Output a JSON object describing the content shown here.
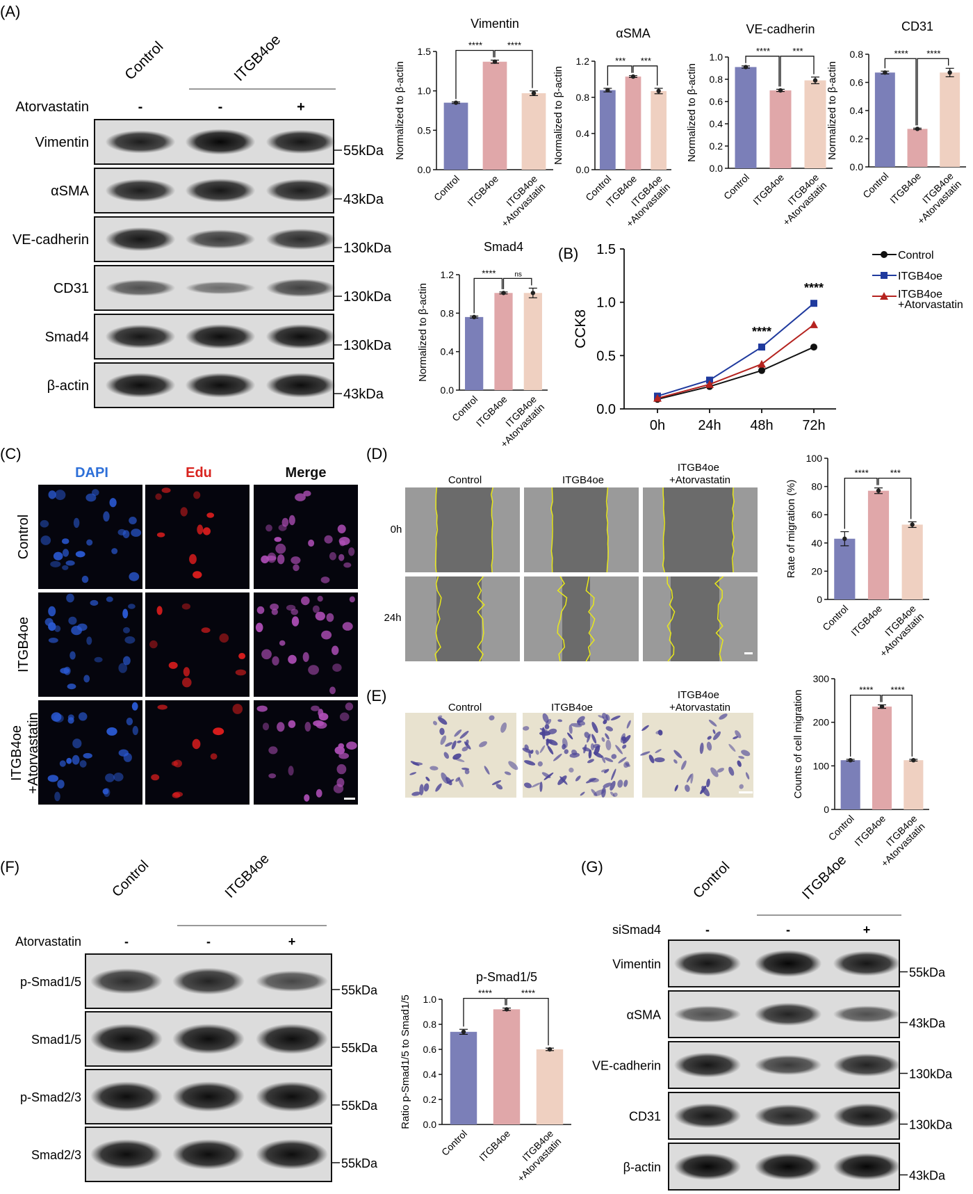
{
  "panels": {
    "A": {
      "label": "(A)",
      "lanes": [
        "Control",
        "ITGB4oe"
      ],
      "treatment": {
        "name": "Atorvastatin",
        "values": [
          "-",
          "-",
          "+"
        ]
      },
      "blots": [
        {
          "name": "Vimentin",
          "kda": "55kDa",
          "intensity": [
            0.8,
            0.95,
            0.85
          ]
        },
        {
          "name": "αSMA",
          "kda": "43kDa",
          "intensity": [
            0.8,
            0.85,
            0.8
          ]
        },
        {
          "name": "VE-cadherin",
          "kda": "130kDa",
          "intensity": [
            0.85,
            0.6,
            0.7
          ]
        },
        {
          "name": "CD31",
          "kda": "130kDa",
          "intensity": [
            0.45,
            0.25,
            0.55
          ]
        },
        {
          "name": "Smad4",
          "kda": "130kDa",
          "intensity": [
            0.85,
            0.9,
            0.9
          ]
        },
        {
          "name": "β-actin",
          "kda": "43kDa",
          "intensity": [
            0.9,
            0.9,
            0.9
          ]
        }
      ]
    },
    "B": {
      "label": "(B)"
    },
    "C": {
      "label": "(C)",
      "columns": [
        "DAPI",
        "Edu",
        "Merge"
      ],
      "rows": [
        "Control",
        "ITGB4oe",
        "ITGB4oe\n+Atorvastatin"
      ]
    },
    "D": {
      "label": "(D)",
      "columns": [
        "Control",
        "ITGB4oe",
        "ITGB4oe\n+Atorvastatin"
      ],
      "rows": [
        "0h",
        "24h"
      ]
    },
    "E": {
      "label": "(E)",
      "columns": [
        "Control",
        "ITGB4oe",
        "ITGB4oe\n+Atorvastatin"
      ]
    },
    "F": {
      "label": "(F)",
      "lanes": [
        "Control",
        "ITGB4oe"
      ],
      "treatment": {
        "name": "Atorvastatin",
        "values": [
          "-",
          "-",
          "+"
        ]
      },
      "blots": [
        {
          "name": "p-Smad1/5",
          "kda": "55kDa",
          "intensity": [
            0.7,
            0.75,
            0.5
          ]
        },
        {
          "name": "Smad1/5",
          "kda": "55kDa",
          "intensity": [
            0.9,
            0.9,
            0.9
          ]
        },
        {
          "name": "p-Smad2/3",
          "kda": "55kDa",
          "intensity": [
            0.9,
            0.9,
            0.9
          ]
        },
        {
          "name": "Smad2/3",
          "kda": "55kDa",
          "intensity": [
            0.9,
            0.9,
            0.9
          ]
        }
      ]
    },
    "G": {
      "label": "(G)",
      "lanes": [
        "Control",
        "ITGB4oe"
      ],
      "treatment": {
        "name": "siSmad4",
        "values": [
          "-",
          "-",
          "+"
        ]
      },
      "blots": [
        {
          "name": "Vimentin",
          "kda": "55kDa",
          "intensity": [
            0.85,
            0.95,
            0.85
          ]
        },
        {
          "name": "αSMA",
          "kda": "43kDa",
          "intensity": [
            0.45,
            0.75,
            0.45
          ]
        },
        {
          "name": "VE-cadherin",
          "kda": "130kDa",
          "intensity": [
            0.85,
            0.6,
            0.75
          ]
        },
        {
          "name": "CD31",
          "kda": "130kDa",
          "intensity": [
            0.85,
            0.75,
            0.85
          ]
        },
        {
          "name": "β-actin",
          "kda": "43kDa",
          "intensity": [
            0.95,
            0.95,
            0.95
          ]
        }
      ]
    }
  },
  "colors": {
    "control": "#7b7fb8",
    "itgb4oe": "#e0a7a9",
    "atorva": "#efd0c1"
  },
  "chart_data": [
    {
      "id": "vimentin",
      "type": "bar",
      "title": "Vimentin",
      "ylabel": "Normalized to β-actin",
      "categories": [
        "Control",
        "ITGB4oe",
        "ITGB4oe\n+Atorvastatin"
      ],
      "values": [
        0.85,
        1.37,
        0.97
      ],
      "errors": [
        0.01,
        0.02,
        0.03
      ],
      "ylim": [
        0,
        1.5
      ],
      "yticks": [
        "0.0",
        "0.5",
        "1.0",
        "1.5"
      ],
      "significance": [
        {
          "a": 0,
          "b": 1,
          "label": "****"
        },
        {
          "a": 1,
          "b": 2,
          "label": "****"
        }
      ]
    },
    {
      "id": "asma",
      "type": "bar",
      "title": "αSMA",
      "ylabel": "Normalized to β-actin",
      "categories": [
        "Control",
        "ITGB4oe",
        "ITGB4oe\n+Atorvastatin"
      ],
      "values": [
        0.88,
        1.03,
        0.87
      ],
      "errors": [
        0.02,
        0.01,
        0.03
      ],
      "ylim": [
        0,
        1.2
      ],
      "yticks": [
        "0.0",
        "0.4",
        "0.8",
        "1.2"
      ],
      "significance": [
        {
          "a": 0,
          "b": 1,
          "label": "***"
        },
        {
          "a": 1,
          "b": 2,
          "label": "***"
        }
      ]
    },
    {
      "id": "vecadherin",
      "type": "bar",
      "title": "VE-cadherin",
      "ylabel": "Normalized to β-actin",
      "categories": [
        "Control",
        "ITGB4oe",
        "ITGB4oe\n+Atorvastatin"
      ],
      "values": [
        0.91,
        0.7,
        0.79
      ],
      "errors": [
        0.01,
        0.01,
        0.03
      ],
      "ylim": [
        0,
        1.0
      ],
      "yticks": [
        "0.0",
        "0.2",
        "0.4",
        "0.6",
        "0.8",
        "1.0"
      ],
      "significance": [
        {
          "a": 0,
          "b": 1,
          "label": "****"
        },
        {
          "a": 1,
          "b": 2,
          "label": "***"
        }
      ]
    },
    {
      "id": "cd31",
      "type": "bar",
      "title": "CD31",
      "ylabel": "Normalized to β-actin",
      "categories": [
        "Control",
        "ITGB4oe",
        "ITGB4oe\n+Atorvastatin"
      ],
      "values": [
        0.67,
        0.27,
        0.67
      ],
      "errors": [
        0.01,
        0.005,
        0.03
      ],
      "ylim": [
        0,
        0.8
      ],
      "yticks": [
        "0.0",
        "0.2",
        "0.4",
        "0.6",
        "0.8"
      ],
      "significance": [
        {
          "a": 0,
          "b": 1,
          "label": "****"
        },
        {
          "a": 1,
          "b": 2,
          "label": "****"
        }
      ]
    },
    {
      "id": "smad4",
      "type": "bar",
      "title": "Smad4",
      "ylabel": "Normalized to β-actin",
      "categories": [
        "Control",
        "ITGB4oe",
        "ITGB4oe\n+Atorvastatin"
      ],
      "values": [
        0.76,
        1.01,
        1.01
      ],
      "errors": [
        0.01,
        0.01,
        0.05
      ],
      "ylim": [
        0,
        1.2
      ],
      "yticks": [
        "0.0",
        "0.4",
        "0.8",
        "1.2"
      ],
      "significance": [
        {
          "a": 0,
          "b": 1,
          "label": "****"
        },
        {
          "a": 1,
          "b": 2,
          "label": "ns"
        }
      ]
    },
    {
      "id": "cck8",
      "type": "line",
      "ylabel": "CCK8",
      "x": [
        "0h",
        "24h",
        "48h",
        "72h"
      ],
      "ylim": [
        0,
        1.5
      ],
      "yticks": [
        "0.0",
        "0.5",
        "1.0",
        "1.5"
      ],
      "series": [
        {
          "name": "Control",
          "values": [
            0.09,
            0.21,
            0.36,
            0.58
          ],
          "color": "#111111",
          "marker": "circle"
        },
        {
          "name": "ITGB4oe",
          "values": [
            0.12,
            0.27,
            0.58,
            0.99
          ],
          "color": "#1f3a9e",
          "marker": "square"
        },
        {
          "name": "ITGB4oe\n+Atorvastatin",
          "values": [
            0.1,
            0.23,
            0.42,
            0.79
          ],
          "color": "#b5231f",
          "marker": "triangle"
        }
      ],
      "annotations": [
        {
          "x": "48h",
          "label": "****"
        },
        {
          "x": "72h",
          "label": "****"
        }
      ]
    },
    {
      "id": "migration",
      "type": "bar",
      "ylabel": "Rate of migration (%)",
      "categories": [
        "Control",
        "ITGB4oe",
        "ITGB4oe\n+Atorvastatin"
      ],
      "values": [
        43,
        77,
        53
      ],
      "errors": [
        5,
        2,
        2
      ],
      "ylim": [
        0,
        100
      ],
      "yticks": [
        "0",
        "20",
        "40",
        "60",
        "80",
        "100"
      ],
      "significance": [
        {
          "a": 0,
          "b": 1,
          "label": "****"
        },
        {
          "a": 1,
          "b": 2,
          "label": "***"
        }
      ]
    },
    {
      "id": "counts",
      "type": "bar",
      "ylabel": "Counts of cell migration",
      "categories": [
        "Control",
        "ITGB4oe",
        "ITGB4oe\n+Atorvastatin"
      ],
      "values": [
        113,
        236,
        113
      ],
      "errors": [
        2,
        4,
        2
      ],
      "ylim": [
        0,
        300
      ],
      "yticks": [
        "0",
        "100",
        "200",
        "300"
      ],
      "significance": [
        {
          "a": 0,
          "b": 1,
          "label": "****"
        },
        {
          "a": 1,
          "b": 2,
          "label": "****"
        }
      ]
    },
    {
      "id": "psmad",
      "type": "bar",
      "title": "p-Smad1/5",
      "ylabel": "Ratio p-Smad1/5 to Smad1/5",
      "categories": [
        "Control",
        "ITGB4oe",
        "ITGB4oe\n+Atorvastatin"
      ],
      "values": [
        0.74,
        0.92,
        0.6
      ],
      "errors": [
        0.02,
        0.01,
        0.01
      ],
      "ylim": [
        0,
        1.0
      ],
      "yticks": [
        "0.0",
        "0.2",
        "0.4",
        "0.6",
        "0.8",
        "1.0"
      ],
      "significance": [
        {
          "a": 0,
          "b": 1,
          "label": "****"
        },
        {
          "a": 1,
          "b": 2,
          "label": "****"
        }
      ]
    }
  ]
}
